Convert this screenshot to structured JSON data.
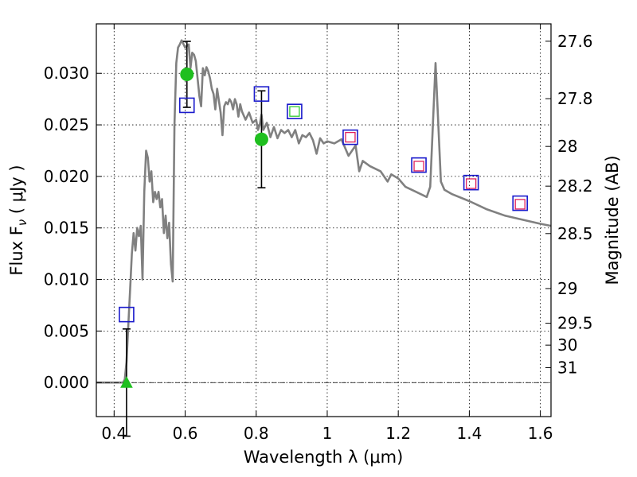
{
  "chart_data": {
    "type": "line",
    "xlabel": "Wavelength  λ (μm)",
    "ylabel": "Flux  F",
    "ylabel_subscript": "ν",
    "ylabel_unit": " ( μJy )",
    "y2label": "Magnitude (AB)",
    "xlim": [
      0.35,
      1.63
    ],
    "ylim": [
      -0.0033,
      0.0348
    ],
    "grid": true,
    "x_ticks": [
      {
        "value": 0.4,
        "label": "0.4"
      },
      {
        "value": 0.6,
        "label": "0.6"
      },
      {
        "value": 0.8,
        "label": "0.8"
      },
      {
        "value": 1.0,
        "label": "1"
      },
      {
        "value": 1.2,
        "label": "1.2"
      },
      {
        "value": 1.4,
        "label": "1.4"
      },
      {
        "value": 1.6,
        "label": "1.6"
      }
    ],
    "y_ticks": [
      {
        "value": 0.0,
        "label": "0.000"
      },
      {
        "value": 0.005,
        "label": "0.005"
      },
      {
        "value": 0.01,
        "label": "0.010"
      },
      {
        "value": 0.015,
        "label": "0.015"
      },
      {
        "value": 0.02,
        "label": "0.020"
      },
      {
        "value": 0.025,
        "label": "0.025"
      },
      {
        "value": 0.03,
        "label": "0.030"
      }
    ],
    "y2_ticks": [
      {
        "mag": 27.6,
        "label": "27.6"
      },
      {
        "mag": 27.8,
        "label": "27.8"
      },
      {
        "mag": 28.0,
        "label": "28"
      },
      {
        "mag": 28.2,
        "label": "28.2"
      },
      {
        "mag": 28.5,
        "label": "28.5"
      },
      {
        "mag": 29.0,
        "label": "29"
      },
      {
        "mag": 29.5,
        "label": "29.5"
      },
      {
        "mag": 30.0,
        "label": "30"
      },
      {
        "mag": 31.0,
        "label": "31"
      }
    ],
    "model_spectrum": {
      "color": "#808080",
      "x": [
        0.35,
        0.425,
        0.43,
        0.435,
        0.44,
        0.445,
        0.45,
        0.455,
        0.46,
        0.465,
        0.47,
        0.475,
        0.48,
        0.485,
        0.49,
        0.495,
        0.5,
        0.505,
        0.51,
        0.515,
        0.52,
        0.525,
        0.53,
        0.535,
        0.54,
        0.545,
        0.55,
        0.555,
        0.56,
        0.565,
        0.57,
        0.575,
        0.58,
        0.585,
        0.59,
        0.6,
        0.61,
        0.615,
        0.62,
        0.625,
        0.63,
        0.64,
        0.645,
        0.65,
        0.655,
        0.66,
        0.665,
        0.67,
        0.675,
        0.68,
        0.685,
        0.69,
        0.7,
        0.705,
        0.71,
        0.715,
        0.72,
        0.725,
        0.73,
        0.735,
        0.74,
        0.745,
        0.75,
        0.755,
        0.76,
        0.77,
        0.78,
        0.79,
        0.8,
        0.805,
        0.81,
        0.815,
        0.82,
        0.83,
        0.84,
        0.85,
        0.86,
        0.87,
        0.88,
        0.89,
        0.9,
        0.91,
        0.92,
        0.93,
        0.94,
        0.95,
        0.96,
        0.97,
        0.98,
        0.99,
        1.0,
        1.02,
        1.04,
        1.06,
        1.08,
        1.09,
        1.1,
        1.12,
        1.15,
        1.17,
        1.18,
        1.2,
        1.22,
        1.25,
        1.28,
        1.29,
        1.305,
        1.32,
        1.33,
        1.35,
        1.4,
        1.45,
        1.5,
        1.55,
        1.6,
        1.63
      ],
      "y": [
        0.0,
        0.0,
        0.0003,
        0.002,
        0.0055,
        0.009,
        0.0125,
        0.0145,
        0.0128,
        0.015,
        0.0142,
        0.0152,
        0.01,
        0.0185,
        0.0225,
        0.0218,
        0.0195,
        0.0205,
        0.0175,
        0.0185,
        0.0178,
        0.0185,
        0.017,
        0.0178,
        0.0145,
        0.0162,
        0.014,
        0.0155,
        0.0115,
        0.0098,
        0.025,
        0.031,
        0.0325,
        0.0328,
        0.0332,
        0.0325,
        0.0328,
        0.0305,
        0.032,
        0.0318,
        0.0312,
        0.0278,
        0.0268,
        0.0305,
        0.0298,
        0.0306,
        0.0302,
        0.0295,
        0.0285,
        0.028,
        0.0265,
        0.0285,
        0.0262,
        0.024,
        0.0268,
        0.0272,
        0.027,
        0.0275,
        0.0272,
        0.0265,
        0.0275,
        0.027,
        0.0258,
        0.027,
        0.0263,
        0.0255,
        0.0262,
        0.0252,
        0.0255,
        0.0245,
        0.025,
        0.026,
        0.0245,
        0.0252,
        0.0238,
        0.0248,
        0.0237,
        0.0245,
        0.0242,
        0.0245,
        0.0238,
        0.0245,
        0.0232,
        0.024,
        0.0238,
        0.0242,
        0.0235,
        0.0222,
        0.0237,
        0.0232,
        0.0234,
        0.0232,
        0.0236,
        0.022,
        0.023,
        0.0205,
        0.0215,
        0.021,
        0.0205,
        0.0195,
        0.0202,
        0.0198,
        0.019,
        0.0185,
        0.018,
        0.019,
        0.031,
        0.0195,
        0.0187,
        0.0183,
        0.0176,
        0.0168,
        0.0162,
        0.0158,
        0.0154,
        0.0152
      ]
    },
    "observed_flux": {
      "color": "#1fbf1f",
      "points": [
        {
          "x": 0.435,
          "y": 0.0,
          "err": 0.0052,
          "marker": "triangle"
        },
        {
          "x": 0.605,
          "y": 0.0299,
          "err": 0.0032,
          "marker": "circle"
        },
        {
          "x": 0.815,
          "y": 0.0236,
          "err": 0.0047,
          "marker": "circle"
        }
      ]
    },
    "model_photometry_square": {
      "color": "#1a1acc",
      "points": [
        {
          "x": 0.435,
          "y": 0.0066
        },
        {
          "x": 0.605,
          "y": 0.0269
        },
        {
          "x": 0.815,
          "y": 0.028
        },
        {
          "x": 0.908,
          "y": 0.0263
        },
        {
          "x": 1.065,
          "y": 0.0238
        },
        {
          "x": 1.258,
          "y": 0.0211
        },
        {
          "x": 1.405,
          "y": 0.0194
        },
        {
          "x": 1.543,
          "y": 0.0174
        }
      ]
    },
    "inner_square_green": {
      "color": "#33cc33",
      "points": [
        {
          "x": 0.908,
          "y": 0.0263
        }
      ]
    },
    "inner_square_red": {
      "color": "#e0205a",
      "points": [
        {
          "x": 1.065,
          "y": 0.0238
        },
        {
          "x": 1.258,
          "y": 0.021
        },
        {
          "x": 1.405,
          "y": 0.0193
        },
        {
          "x": 1.543,
          "y": 0.0173
        }
      ]
    }
  }
}
